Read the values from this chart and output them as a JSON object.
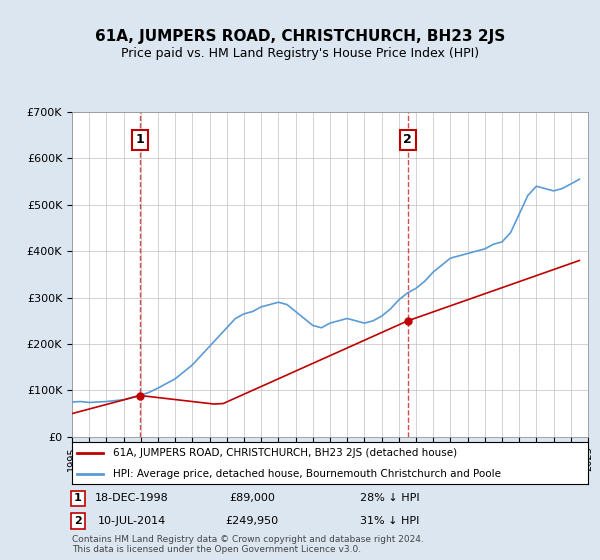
{
  "title": "61A, JUMPERS ROAD, CHRISTCHURCH, BH23 2JS",
  "subtitle": "Price paid vs. HM Land Registry's House Price Index (HPI)",
  "hpi_years": [
    1995,
    1995.5,
    1996,
    1996.5,
    1997,
    1997.5,
    1998,
    1998.5,
    1999,
    1999.5,
    2000,
    2000.5,
    2001,
    2001.5,
    2002,
    2002.5,
    2003,
    2003.5,
    2004,
    2004.5,
    2005,
    2005.5,
    2006,
    2006.5,
    2007,
    2007.5,
    2008,
    2008.5,
    2009,
    2009.5,
    2010,
    2010.5,
    2011,
    2011.5,
    2012,
    2012.5,
    2013,
    2013.5,
    2014,
    2014.5,
    2015,
    2015.5,
    2016,
    2016.5,
    2017,
    2017.5,
    2018,
    2018.5,
    2019,
    2019.5,
    2020,
    2020.5,
    2021,
    2021.5,
    2022,
    2022.5,
    2023,
    2023.5,
    2024,
    2024.5
  ],
  "hpi_values": [
    75000,
    76000,
    74000,
    75000,
    76000,
    78000,
    80000,
    85000,
    90000,
    96000,
    105000,
    115000,
    125000,
    140000,
    155000,
    175000,
    195000,
    215000,
    235000,
    255000,
    265000,
    270000,
    280000,
    285000,
    290000,
    285000,
    270000,
    255000,
    240000,
    235000,
    245000,
    250000,
    255000,
    250000,
    245000,
    250000,
    260000,
    275000,
    295000,
    310000,
    320000,
    335000,
    355000,
    370000,
    385000,
    390000,
    395000,
    400000,
    405000,
    415000,
    420000,
    440000,
    480000,
    520000,
    540000,
    535000,
    530000,
    535000,
    545000,
    555000
  ],
  "sale1_year": 1998.96,
  "sale1_price": 89000,
  "sale1_label": "1",
  "sale1_date": "18-DEC-1998",
  "sale1_hpi_pct": "28% ↓ HPI",
  "sale2_year": 2014.52,
  "sale2_price": 249950,
  "sale2_label": "2",
  "sale2_date": "10-JUL-2014",
  "sale2_hpi_pct": "31% ↓ HPI",
  "hpi_color": "#5b9bd5",
  "sale_color": "#c00000",
  "dashed_line_color": "#c00000",
  "background_color": "#dce6f1",
  "plot_bg_color": "#ffffff",
  "legend_border_color": "#000000",
  "grid_color": "#c0c0c0",
  "ylim": [
    0,
    700000
  ],
  "yticks": [
    0,
    100000,
    200000,
    300000,
    400000,
    500000,
    600000,
    700000
  ],
  "xlim_left": 1995,
  "xlim_right": 2025,
  "footnote": "Contains HM Land Registry data © Crown copyright and database right 2024.\nThis data is licensed under the Open Government Licence v3.0."
}
